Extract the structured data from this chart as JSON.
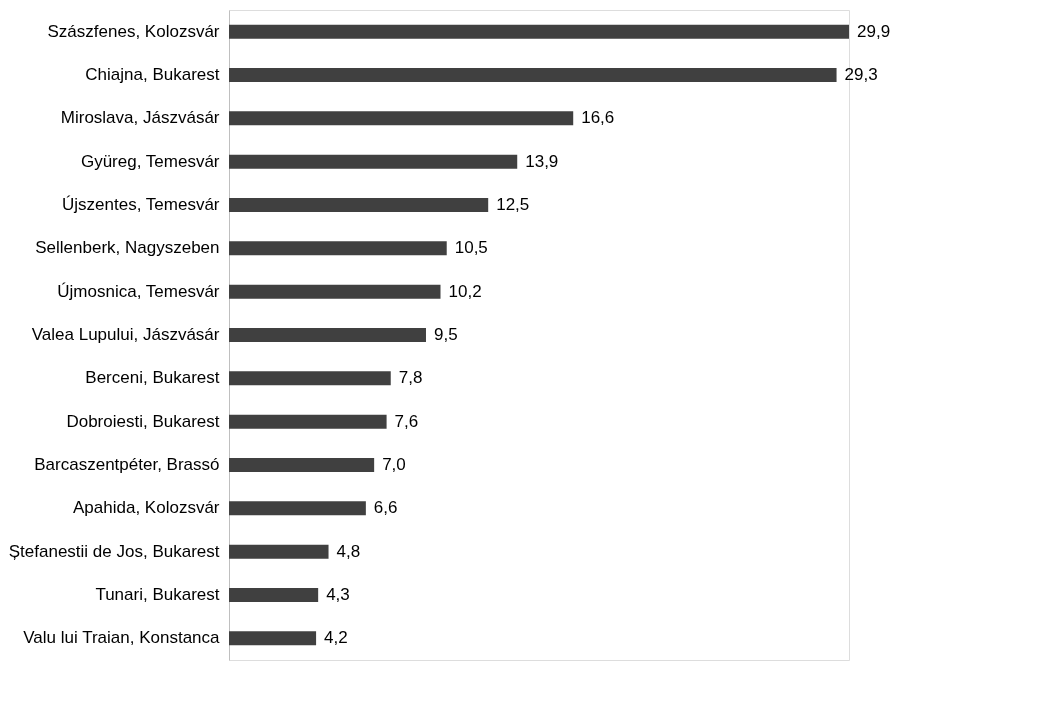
{
  "chart_data": {
    "type": "bar",
    "orientation": "horizontal",
    "categories": [
      "Szászfenes, Kolozsvár",
      "Chiajna, Bukarest",
      "Miroslava, Jászvásár",
      "Gyüreg, Temesvár",
      "Újszentes, Temesvár",
      "Sellenberk, Nagyszeben",
      "Újmosnica, Temesvár",
      "Valea Lupului, Jászvásár",
      "Berceni, Bukarest",
      "Dobroiesti, Bukarest",
      "Barcaszentpéter, Brassó",
      "Apahida, Kolozsvár",
      "Ștefanestii de Jos, Bukarest",
      "Tunari, Bukarest",
      "Valu lui Traian, Konstanca"
    ],
    "values": [
      29.9,
      29.3,
      16.6,
      13.9,
      12.5,
      10.5,
      10.2,
      9.5,
      7.8,
      7.6,
      7.0,
      6.6,
      4.8,
      4.3,
      4.2
    ],
    "value_labels": [
      "29,9",
      "29,3",
      "16,6",
      "13,9",
      "12,5",
      "10,5",
      "10,2",
      "9,5",
      "7,8",
      "7,6",
      "7,0",
      "6,6",
      "4,8",
      "4,3",
      "4,2"
    ],
    "color": "#404040"
  }
}
